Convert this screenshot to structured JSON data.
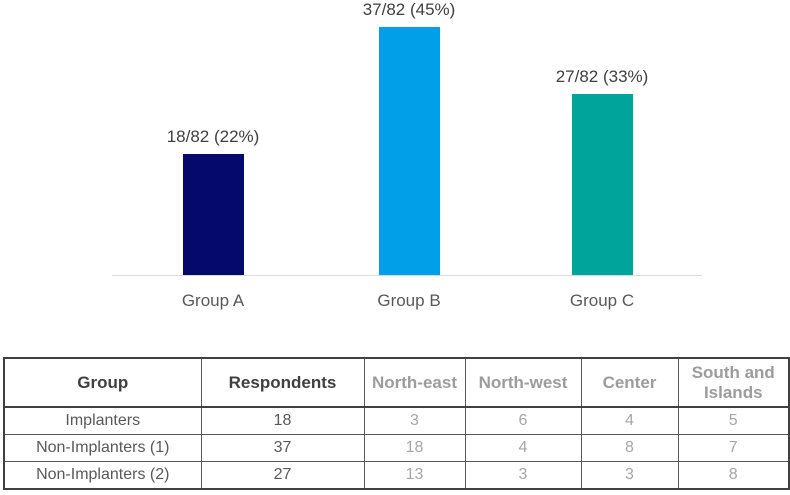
{
  "chart_data": {
    "type": "bar",
    "title": "",
    "xlabel": "",
    "ylabel": "",
    "categories": [
      "Group A",
      "Group B",
      "Group C"
    ],
    "values": [
      18,
      37,
      27
    ],
    "denominator": 82,
    "bar_labels": [
      "18/82 (22%)",
      "37/82 (45%)",
      "27/82 (33%)"
    ],
    "bar_colors": [
      "#04096B",
      "#009FE8",
      "#00A49B"
    ],
    "ylim": [
      0,
      40
    ],
    "grid": false,
    "legend": false,
    "axis_line_color": "#D9D9D9",
    "value_label_color": "#404040",
    "category_label_color": "#595959"
  },
  "table": {
    "headers": [
      "Group",
      "Respondents",
      "North-east",
      "North-west",
      "Center",
      "South and Islands"
    ],
    "rows": [
      [
        "Implanters",
        "18",
        "3",
        "6",
        "4",
        "5"
      ],
      [
        "Non-Implanters (1)",
        "37",
        "18",
        "4",
        "8",
        "7"
      ],
      [
        "Non-Implanters (2)",
        "27",
        "13",
        "3",
        "3",
        "8"
      ]
    ]
  }
}
